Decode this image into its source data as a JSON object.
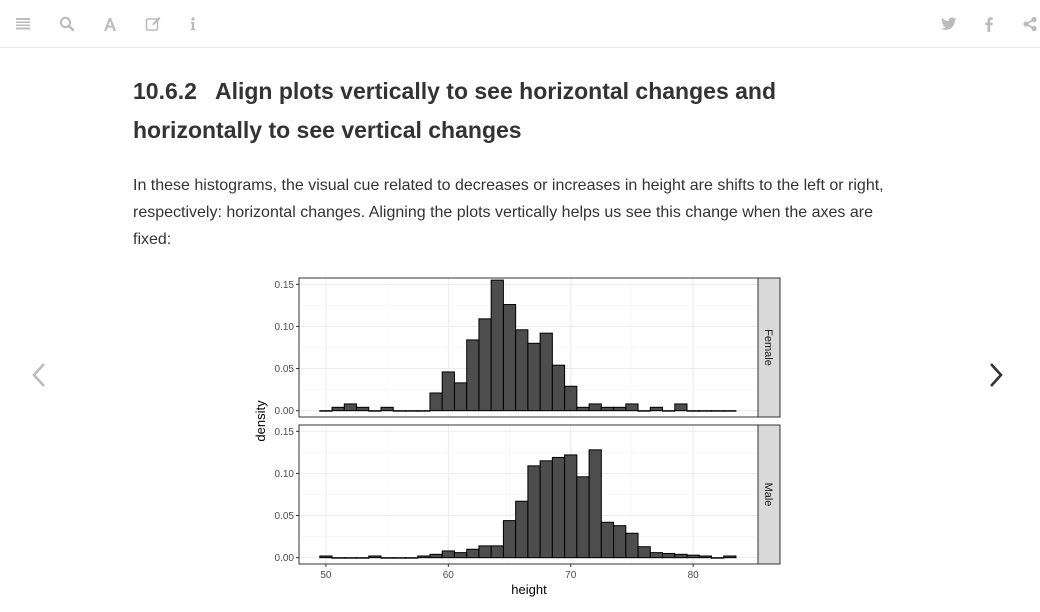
{
  "toolbar": {
    "left_icons": [
      "menu-icon",
      "search-icon",
      "font-icon",
      "edit-icon",
      "info-icon"
    ],
    "right_icons": [
      "twitter-icon",
      "facebook-icon",
      "share-icon"
    ]
  },
  "section": {
    "number": "10.6.2",
    "title": "Align plots vertically to see horizontal changes and horizontally to see vertical changes",
    "paragraph": "In these histograms, the visual cue related to decreases or increases in height are shifts to the left or right, respectively: horizontal changes. Aligning the plots vertically helps us see this change when the axes are fixed:"
  },
  "nav": {
    "prev_icon": "chevron-left-icon",
    "next_icon": "chevron-right-icon"
  },
  "colors": {
    "bar_fill": "#4d4d4d",
    "strip_fill": "#d9d9d9",
    "text": "#333333",
    "icon": "#bbbbbb"
  },
  "chart_data": {
    "type": "bar",
    "xlabel": "height",
    "ylabel": "density",
    "x_range": [
      47.8,
      85.3
    ],
    "x_ticks": [
      50,
      60,
      70,
      80
    ],
    "y_range": [
      -0.0075,
      0.1575
    ],
    "y_ticks": [
      0.0,
      0.05,
      0.1,
      0.15
    ],
    "y_tick_labels": [
      "0.00",
      "0.05",
      "0.10",
      "0.15"
    ],
    "bin_width": 1,
    "grid": true,
    "panels": [
      {
        "name": "Female",
        "bins": [
          {
            "x": 50,
            "y": 0.0
          },
          {
            "x": 51,
            "y": 0.004
          },
          {
            "x": 52,
            "y": 0.008
          },
          {
            "x": 53,
            "y": 0.004
          },
          {
            "x": 54,
            "y": 0.0
          },
          {
            "x": 55,
            "y": 0.004
          },
          {
            "x": 56,
            "y": 0.0
          },
          {
            "x": 57,
            "y": 0.0
          },
          {
            "x": 58,
            "y": 0.0
          },
          {
            "x": 59,
            "y": 0.021
          },
          {
            "x": 60,
            "y": 0.046
          },
          {
            "x": 61,
            "y": 0.033
          },
          {
            "x": 62,
            "y": 0.084
          },
          {
            "x": 63,
            "y": 0.109
          },
          {
            "x": 64,
            "y": 0.155
          },
          {
            "x": 65,
            "y": 0.126
          },
          {
            "x": 66,
            "y": 0.096
          },
          {
            "x": 67,
            "y": 0.08
          },
          {
            "x": 68,
            "y": 0.092
          },
          {
            "x": 69,
            "y": 0.054
          },
          {
            "x": 70,
            "y": 0.029
          },
          {
            "x": 71,
            "y": 0.004
          },
          {
            "x": 72,
            "y": 0.008
          },
          {
            "x": 73,
            "y": 0.004
          },
          {
            "x": 74,
            "y": 0.004
          },
          {
            "x": 75,
            "y": 0.008
          },
          {
            "x": 76,
            "y": 0.0
          },
          {
            "x": 77,
            "y": 0.004
          },
          {
            "x": 78,
            "y": 0.0
          },
          {
            "x": 79,
            "y": 0.008
          },
          {
            "x": 80,
            "y": 0.0
          },
          {
            "x": 81,
            "y": 0.0
          },
          {
            "x": 82,
            "y": 0.0
          },
          {
            "x": 83,
            "y": 0.0
          }
        ]
      },
      {
        "name": "Male",
        "bins": [
          {
            "x": 50,
            "y": 0.002
          },
          {
            "x": 51,
            "y": 0.0
          },
          {
            "x": 52,
            "y": 0.0
          },
          {
            "x": 53,
            "y": 0.0
          },
          {
            "x": 54,
            "y": 0.002
          },
          {
            "x": 55,
            "y": 0.0
          },
          {
            "x": 56,
            "y": 0.0
          },
          {
            "x": 57,
            "y": 0.0
          },
          {
            "x": 58,
            "y": 0.002
          },
          {
            "x": 59,
            "y": 0.004
          },
          {
            "x": 60,
            "y": 0.008
          },
          {
            "x": 61,
            "y": 0.006
          },
          {
            "x": 62,
            "y": 0.01
          },
          {
            "x": 63,
            "y": 0.014
          },
          {
            "x": 64,
            "y": 0.014
          },
          {
            "x": 65,
            "y": 0.044
          },
          {
            "x": 66,
            "y": 0.067
          },
          {
            "x": 67,
            "y": 0.109
          },
          {
            "x": 68,
            "y": 0.115
          },
          {
            "x": 69,
            "y": 0.119
          },
          {
            "x": 70,
            "y": 0.122
          },
          {
            "x": 71,
            "y": 0.096
          },
          {
            "x": 72,
            "y": 0.128
          },
          {
            "x": 73,
            "y": 0.042
          },
          {
            "x": 74,
            "y": 0.038
          },
          {
            "x": 75,
            "y": 0.029
          },
          {
            "x": 76,
            "y": 0.013
          },
          {
            "x": 77,
            "y": 0.006
          },
          {
            "x": 78,
            "y": 0.005
          },
          {
            "x": 79,
            "y": 0.004
          },
          {
            "x": 80,
            "y": 0.003
          },
          {
            "x": 81,
            "y": 0.002
          },
          {
            "x": 82,
            "y": 0.0
          },
          {
            "x": 83,
            "y": 0.002
          }
        ]
      }
    ]
  }
}
